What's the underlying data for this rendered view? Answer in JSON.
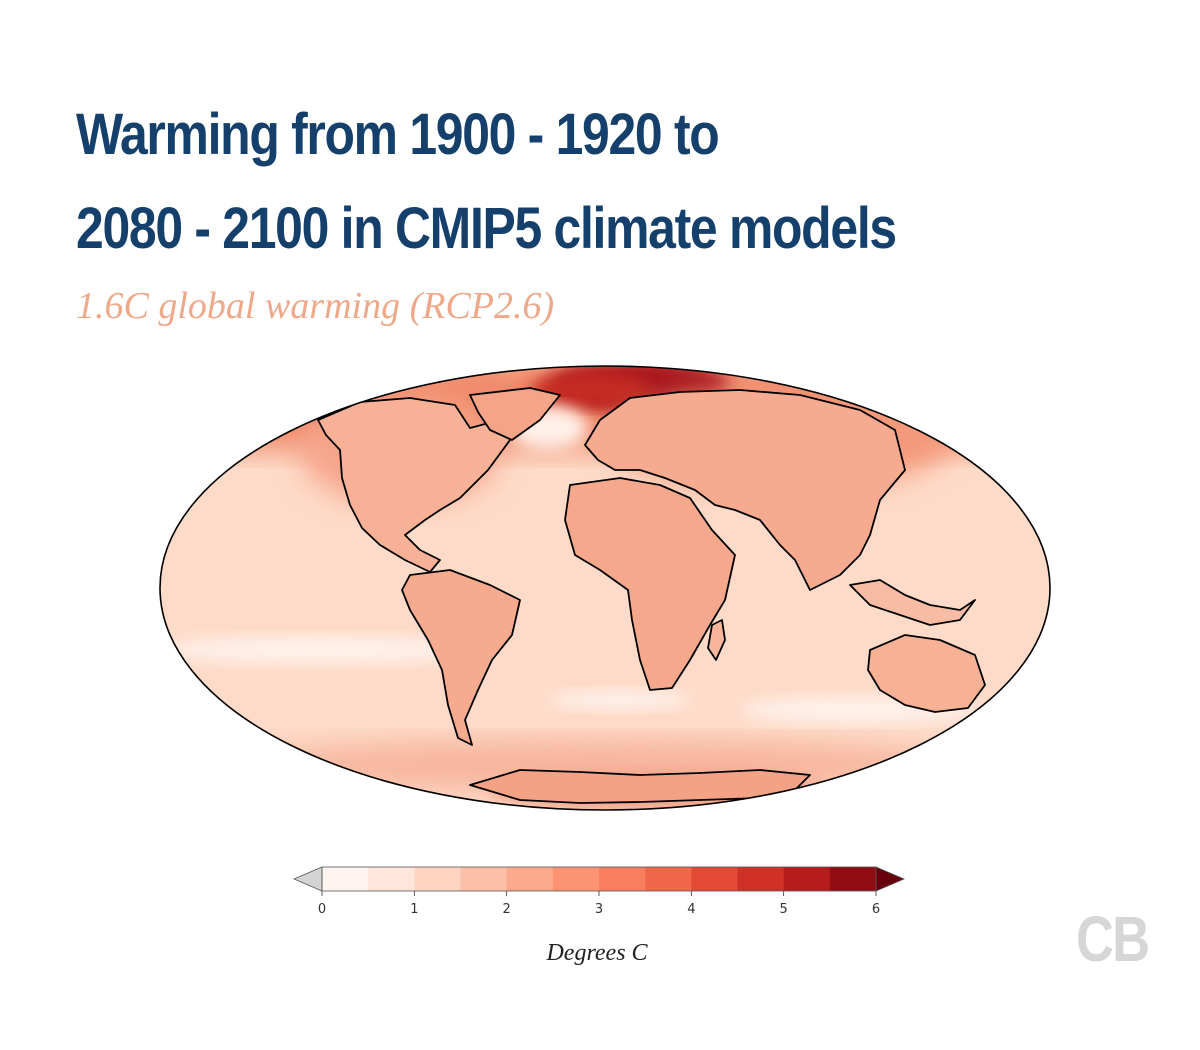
{
  "title_lines": [
    "Warming from 1900 - 1920 to",
    "2080 - 2100 in CMIP5 climate models"
  ],
  "subtitle": "1.6C global warming (RCP2.6)",
  "logo": "CB",
  "colorbar": {
    "label": "Degrees C",
    "min": 0,
    "max": 6,
    "step": 0.5,
    "ticks": [
      0,
      1,
      2,
      3,
      4,
      5,
      6
    ],
    "extend": "both",
    "under_color": "#d4d4d4",
    "colors": [
      "#fff4ef",
      "#fee6da",
      "#fdd4c2",
      "#fcbfa7",
      "#fcaa8d",
      "#fc9474",
      "#f77e5e",
      "#f26749",
      "#e24a35",
      "#cf3127",
      "#b71c1c",
      "#920d13"
    ],
    "over_color": "#67000d"
  },
  "map": {
    "projection": "mollweide",
    "ocean_color": "#fddbc8",
    "outline_color": "#000000"
  },
  "colors": {
    "title": "#14406b",
    "subtitle": "#eea98b",
    "logo": "#d6d6d6"
  }
}
